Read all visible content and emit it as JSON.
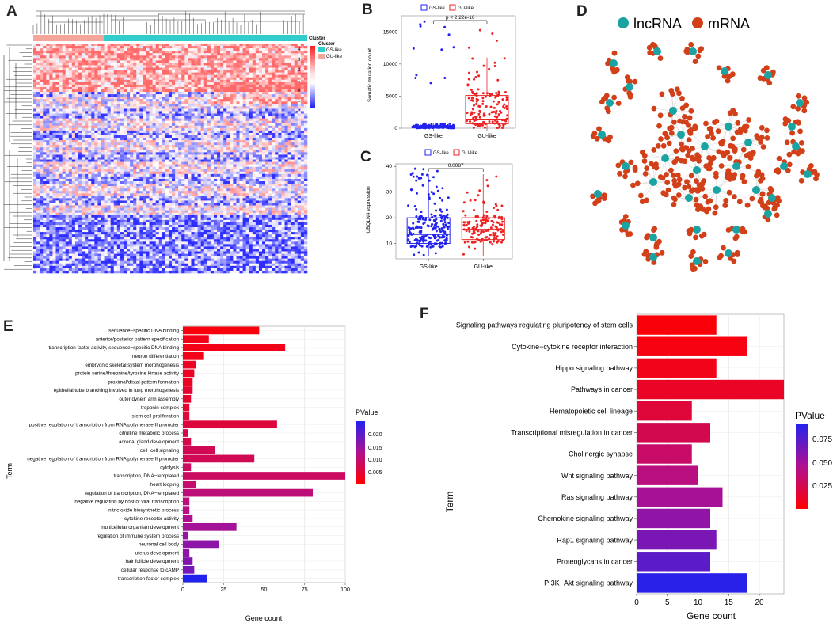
{
  "panel_labels": {
    "a": "A",
    "b": "B",
    "c": "C",
    "d": "D",
    "e": "E",
    "f": "F"
  },
  "colors": {
    "gs": "#33cccc",
    "gu": "#f4a69a",
    "blue": "#2222ee",
    "red": "#ee2222",
    "lnc": "#1aa3a3",
    "mrna": "#d2401a"
  },
  "chart_data": [
    {
      "id": "A",
      "type": "heatmap",
      "legend_title": "Cluster",
      "color_scale_ticks": [
        "4",
        "3",
        "2",
        "1",
        "0",
        "-1",
        "-2"
      ],
      "annotation_legend": {
        "title": "Cluster",
        "items": [
          "GS-like",
          "GU-like"
        ]
      }
    },
    {
      "id": "B",
      "type": "box",
      "legend": [
        "GS-like",
        "GU-like"
      ],
      "categories": [
        "GS-like",
        "GU-like"
      ],
      "ylabel": "Somatic mutation count",
      "yticks": [
        "0",
        "5000",
        "10000",
        "15000"
      ],
      "ylim": [
        0,
        17500
      ],
      "pvalue": "p < 2.22e-16",
      "boxes": [
        {
          "q1": 60,
          "median": 160,
          "q3": 310,
          "lo": 0,
          "hi": 720
        },
        {
          "q1": 700,
          "median": 1400,
          "q3": 5100,
          "lo": 0,
          "hi": 11000
        }
      ]
    },
    {
      "id": "C",
      "type": "box",
      "legend": [
        "GS-like",
        "GU-like"
      ],
      "categories": [
        "GS-like",
        "GU-like"
      ],
      "ylabel": "UBQLN4 expression",
      "yticks": [
        "10",
        "20",
        "30",
        "40"
      ],
      "ylim": [
        4,
        41
      ],
      "pvalue": "0.0087",
      "boxes": [
        {
          "q1": 10,
          "median": 13.5,
          "q3": 20,
          "lo": 5,
          "hi": 37
        },
        {
          "q1": 11.5,
          "median": 15.5,
          "q3": 20,
          "lo": 5,
          "hi": 37
        }
      ]
    },
    {
      "id": "D",
      "type": "network",
      "legend": [
        "lncRNA",
        "mRNA"
      ]
    },
    {
      "id": "E",
      "type": "bar",
      "ylabel": "Term",
      "xlabel": "Gene count",
      "xticks": [
        "0",
        "25",
        "50",
        "75",
        "100"
      ],
      "xlim": [
        0,
        100
      ],
      "legend_title": "PValue",
      "legend_ticks": [
        "0.020",
        "0.015",
        "0.010",
        "0.005"
      ],
      "categories": [
        "sequence−specific DNA binding",
        "anterior/posterior pattern specification",
        "transcription factor activity, sequence−specific DNA binding",
        "neuron differentiation",
        "embryonic skeletal system morphogenesis",
        "protein serine/threonine/tyrosine kinase activity",
        "proximal/distal pattern formation",
        "epithelial tube branching involved in lung morphogenesis",
        "outer dynein arm assembly",
        "troponin complex",
        "stem cell proliferation",
        "positive regulation of transcription from RNA polymerase II promoter",
        "citrulline metabolic process",
        "adrenal gland development",
        "cell−cell signaling",
        "negative regulation of transcription from RNA polymerase II promoter",
        "cytolysis",
        "transcription, DNA−templated",
        "heart looping",
        "regulation of transcription, DNA−templated",
        "negative regulation by host of viral transcription",
        "nitric oxide biosynthetic process",
        "cytokine receptor activity",
        "multicellular organism development",
        "regulation of immune system process",
        "neuronal cell body",
        "uterus development",
        "hair follicle development",
        "cellular response to cAMP",
        "transcription factor complex"
      ],
      "values": [
        47,
        16,
        63,
        13,
        8,
        7,
        6,
        6,
        5,
        4,
        4,
        58,
        3,
        5,
        20,
        44,
        5,
        101,
        8,
        80,
        4,
        4,
        6,
        33,
        3,
        22,
        4,
        6,
        7,
        15
      ],
      "pvalues": [
        0.001,
        0.002,
        0.002,
        0.002,
        0.003,
        0.003,
        0.003,
        0.004,
        0.004,
        0.004,
        0.005,
        0.005,
        0.006,
        0.006,
        0.007,
        0.007,
        0.008,
        0.008,
        0.009,
        0.01,
        0.01,
        0.011,
        0.012,
        0.013,
        0.014,
        0.015,
        0.015,
        0.016,
        0.017,
        0.024
      ]
    },
    {
      "id": "F",
      "type": "bar",
      "ylabel": "Term",
      "xlabel": "Gene count",
      "xticks": [
        "0",
        "5",
        "10",
        "15",
        "20"
      ],
      "xlim": [
        0,
        24
      ],
      "legend_title": "PValue",
      "legend_ticks": [
        "0.075",
        "0.050",
        "0.025"
      ],
      "categories": [
        "Signaling pathways regulating pluripotency of stem cells",
        "Cytokine−cytokine receptor interaction",
        "Hippo signaling pathway",
        "Pathways in cancer",
        "Hematopoietic cell lineage",
        "Transcriptional misregulation in cancer",
        "Cholinergic synapse",
        "Wnt signaling pathway",
        "Ras signaling pathway",
        "Chemokine signaling pathway",
        "Rap1 signaling pathway",
        "Proteoglycans in cancer",
        "PI3K−Akt signaling pathway"
      ],
      "values": [
        13,
        18,
        13,
        24,
        9,
        12,
        9,
        10,
        14,
        12,
        13,
        12,
        18
      ],
      "pvalues": [
        0.003,
        0.005,
        0.008,
        0.012,
        0.018,
        0.025,
        0.032,
        0.04,
        0.048,
        0.055,
        0.062,
        0.072,
        0.088
      ]
    }
  ]
}
